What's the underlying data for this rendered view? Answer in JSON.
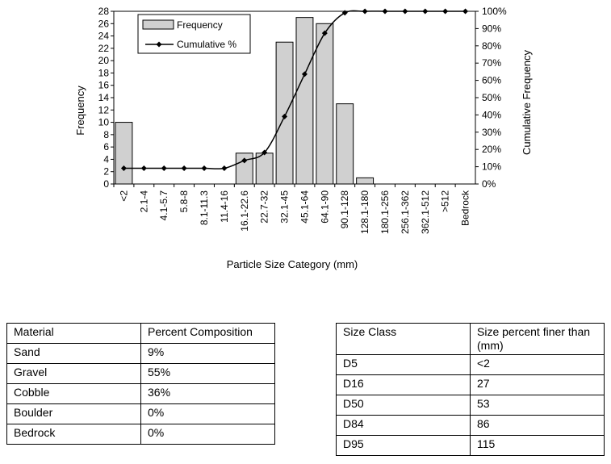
{
  "chart_data": {
    "type": "bar",
    "categories": [
      "<2",
      "2.1-4",
      "4.1-5.7",
      "5.8-8",
      "8.1-11.3",
      "11.4-16",
      "16.1-22.6",
      "22.7-32",
      "32.1-45",
      "45.1-64",
      "64.1-90",
      "90.1-128",
      "128.1-180",
      "180.1-256",
      "256.1-362",
      "362.1-512",
      ">512",
      "Bedrock"
    ],
    "series": [
      {
        "name": "Frequency",
        "color": "#d0d0d0",
        "values": [
          10,
          0,
          0,
          0,
          0,
          0,
          5,
          5,
          23,
          27,
          26,
          13,
          1,
          0,
          0,
          0,
          0,
          0
        ]
      },
      {
        "name": "Cumulative %",
        "type": "line",
        "axis": "y2",
        "color": "#000000",
        "values": [
          9.1,
          9.1,
          9.1,
          9.1,
          9.1,
          9.1,
          13.6,
          18.2,
          39.1,
          63.6,
          87.3,
          99.1,
          100,
          100,
          100,
          100,
          100,
          100
        ]
      }
    ],
    "x_label": "Particle Size Category (mm)",
    "y_label": "Frequency",
    "y2_label": "Cumulative Frequency",
    "ylim": [
      0,
      28
    ],
    "yticks": [
      0,
      2,
      4,
      6,
      8,
      10,
      12,
      14,
      16,
      18,
      20,
      22,
      24,
      26,
      28
    ],
    "y2lim": [
      0,
      100
    ],
    "y2ticks": [
      {
        "value": 0,
        "label": "0%"
      },
      {
        "value": 10,
        "label": "10%"
      },
      {
        "value": 20,
        "label": "20%"
      },
      {
        "value": 30,
        "label": "30%"
      },
      {
        "value": 40,
        "label": "40%"
      },
      {
        "value": 50,
        "label": "50%"
      },
      {
        "value": 60,
        "label": "60%"
      },
      {
        "value": 70,
        "label": "70%"
      },
      {
        "value": 80,
        "label": "80%"
      },
      {
        "value": 90,
        "label": "90%"
      },
      {
        "value": 100,
        "label": "100%"
      }
    ],
    "legend": "top-left"
  },
  "tables": [
    {
      "header": [
        "Material",
        "Percent Composition"
      ],
      "rows": [
        [
          "Sand",
          "9%"
        ],
        [
          "Gravel",
          "55%"
        ],
        [
          "Cobble",
          "36%"
        ],
        [
          "Boulder",
          "0%"
        ],
        [
          "Bedrock",
          "0%"
        ]
      ]
    },
    {
      "header": [
        "Size Class",
        "Size percent  finer than (mm)"
      ],
      "rows": [
        [
          "D5",
          "<2"
        ],
        [
          "D16",
          "27"
        ],
        [
          "D50",
          "53"
        ],
        [
          "D84",
          "86"
        ],
        [
          "D95",
          "115"
        ]
      ]
    }
  ]
}
